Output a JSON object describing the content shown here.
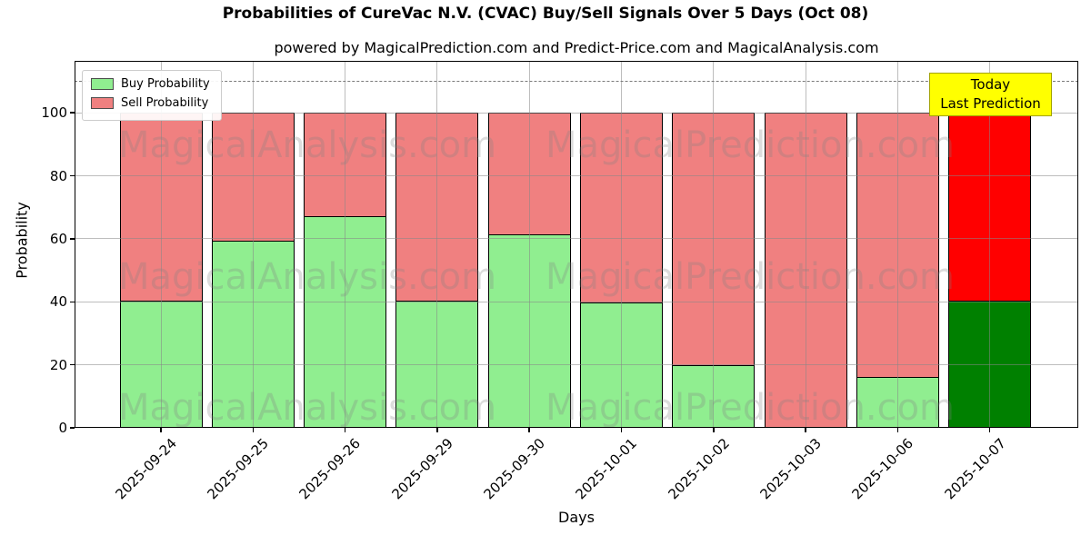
{
  "chart_data": {
    "type": "bar",
    "stacked": true,
    "title": "Probabilities of CureVac N.V. (CVAC) Buy/Sell Signals Over 5 Days (Oct 08)",
    "subtitle": "powered by MagicalPrediction.com and Predict-Price.com and MagicalAnalysis.com",
    "xlabel": "Days",
    "ylabel": "Probability",
    "categories": [
      "2025-09-24",
      "2025-09-25",
      "2025-09-26",
      "2025-09-29",
      "2025-09-30",
      "2025-10-01",
      "2025-10-02",
      "2025-10-03",
      "2025-10-06",
      "2025-10-07"
    ],
    "series": [
      {
        "name": "Buy Probability",
        "values": [
          40,
          59,
          67,
          40,
          61,
          39.5,
          19.5,
          0,
          16,
          40
        ],
        "color_default": "#90EE90",
        "color_today": "#008000"
      },
      {
        "name": "Sell Probability",
        "values": [
          60,
          41,
          33,
          60,
          39,
          60.5,
          80.5,
          100,
          84,
          60
        ],
        "color_default": "#F08080",
        "color_today": "#FF0000"
      }
    ],
    "today_index": 9,
    "yticks": [
      0,
      20,
      40,
      60,
      80,
      100
    ],
    "ylim": [
      0,
      116.5
    ],
    "dashed_hline_y": 110,
    "grid": true,
    "x_tick_rotation": 45,
    "legend_position": "upper left",
    "bar_edge_color": "#000000"
  },
  "legend": {
    "items": [
      {
        "label": "Buy Probability",
        "color": "#90EE90"
      },
      {
        "label": "Sell Probability",
        "color": "#F08080"
      }
    ]
  },
  "annotation": {
    "line1": "Today",
    "line2": "Last Prediction",
    "bg_color": "#FFFF00",
    "border_color": "#A3A300"
  },
  "watermarks": {
    "left": "MagicalAnalysis.com",
    "right": "MagicalPrediction.com"
  }
}
